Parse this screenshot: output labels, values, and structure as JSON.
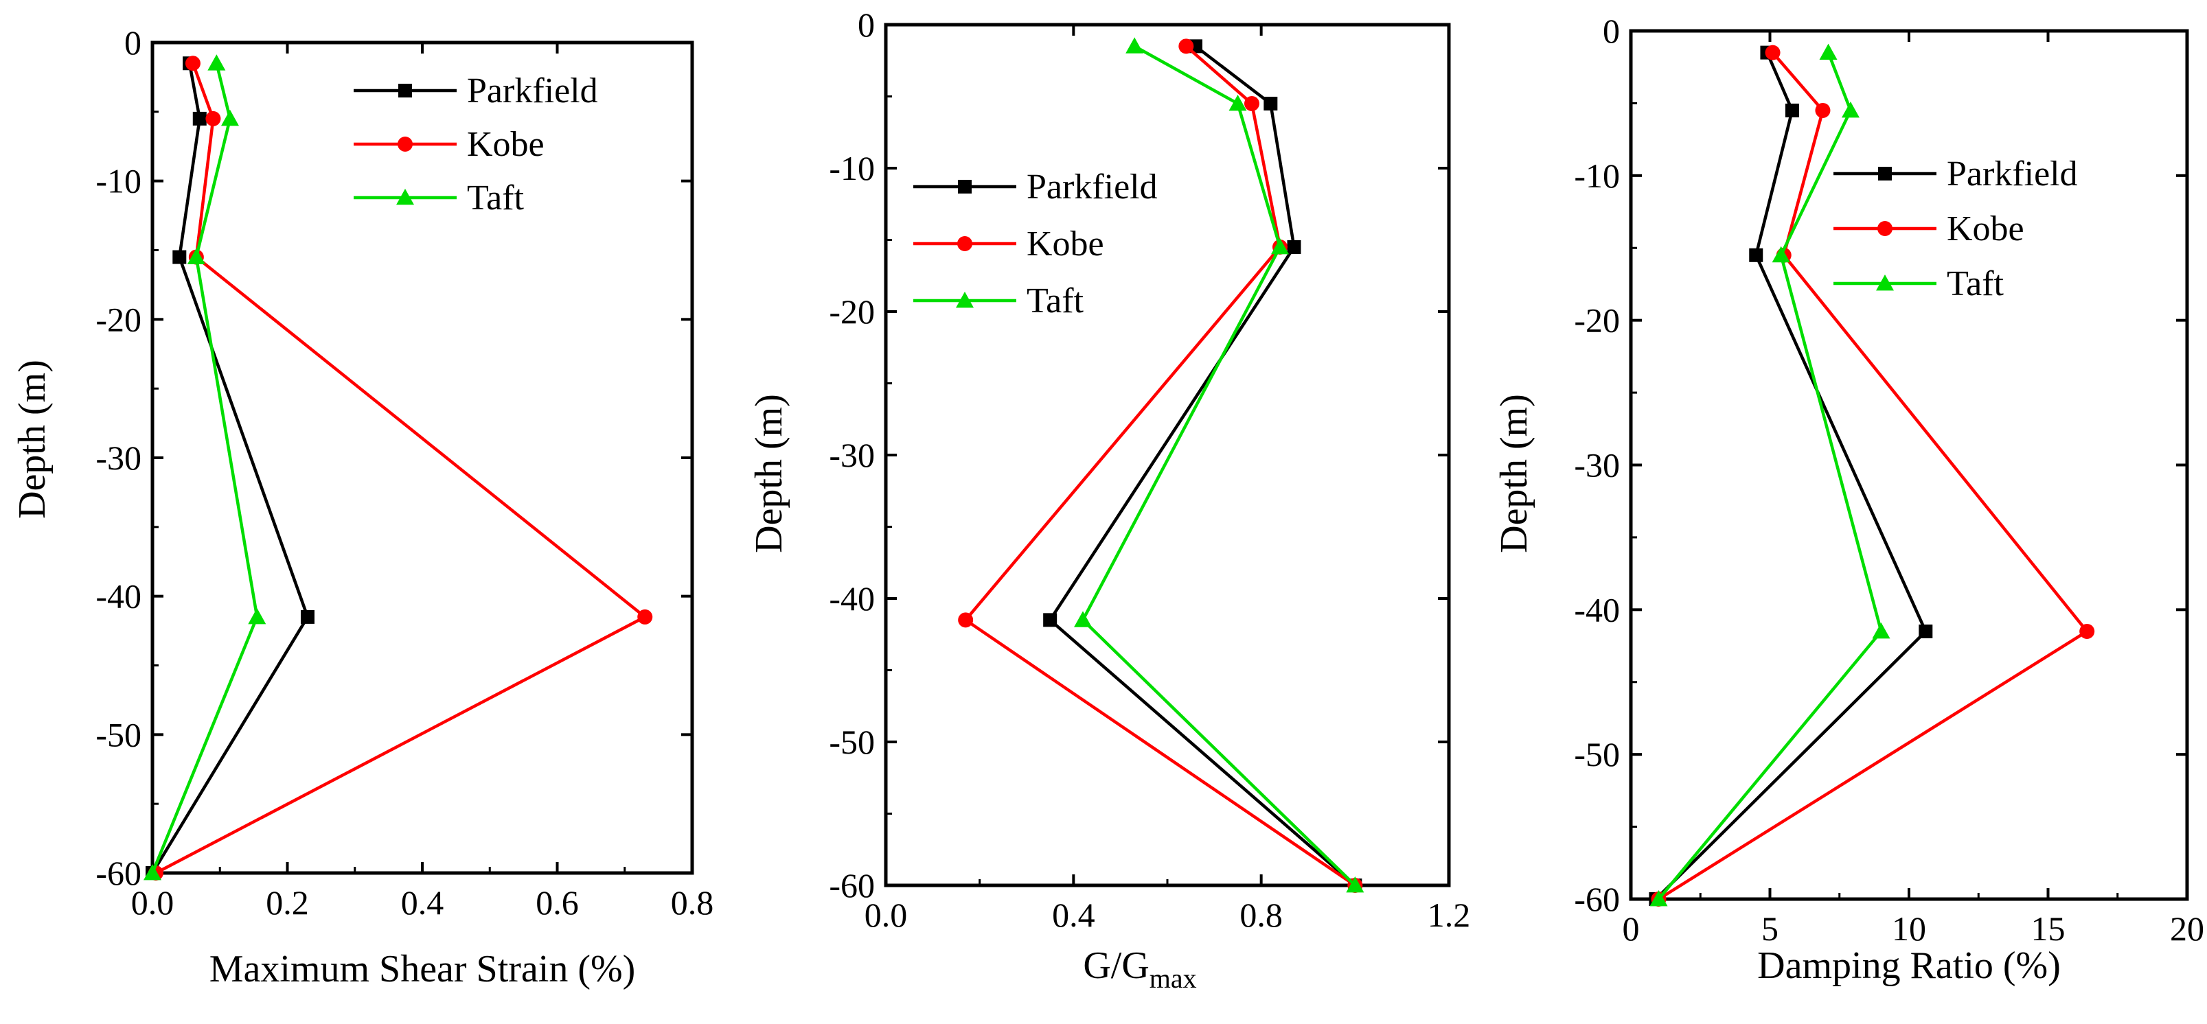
{
  "chart_data": [
    {
      "type": "line",
      "title": "",
      "xlabel": "Maximum Shear Strain (%)",
      "ylabel": "Depth (m)",
      "xlim": [
        0,
        0.8
      ],
      "ylim": [
        -60,
        0
      ],
      "xticks": [
        0.0,
        0.2,
        0.4,
        0.6,
        0.8
      ],
      "xtick_labels": [
        "0.0",
        "0.2",
        "0.4",
        "0.6",
        "0.8"
      ],
      "yticks": [
        0,
        -10,
        -20,
        -30,
        -40,
        -50,
        -60
      ],
      "ytick_labels": [
        "0",
        "-10",
        "-20",
        "-30",
        "-40",
        "-50",
        "-60"
      ],
      "grid": false,
      "legend": "top-right",
      "series": [
        {
          "name": "Parkfield",
          "color": "#000000",
          "marker": "square",
          "points": [
            [
              0.055,
              -1.5
            ],
            [
              0.07,
              -5.5
            ],
            [
              0.04,
              -15.5
            ],
            [
              0.23,
              -41.5
            ],
            [
              0.0,
              -60
            ]
          ]
        },
        {
          "name": "Kobe",
          "color": "#ff0000",
          "marker": "circle",
          "points": [
            [
              0.06,
              -1.5
            ],
            [
              0.09,
              -5.5
            ],
            [
              0.065,
              -15.5
            ],
            [
              0.73,
              -41.5
            ],
            [
              0.005,
              -60
            ]
          ]
        },
        {
          "name": "Taft",
          "color": "#00dd00",
          "marker": "triangle",
          "points": [
            [
              0.095,
              -1.5
            ],
            [
              0.115,
              -5.5
            ],
            [
              0.065,
              -15.5
            ],
            [
              0.155,
              -41.5
            ],
            [
              0.0,
              -60
            ]
          ]
        }
      ]
    },
    {
      "type": "line",
      "title": "",
      "xlabel": "G/G",
      "xlabel_sub": "max",
      "ylabel": "Depth (m)",
      "xlim": [
        0,
        1.2
      ],
      "ylim": [
        -60,
        0
      ],
      "xticks": [
        0.0,
        0.4,
        0.8,
        1.2
      ],
      "xtick_labels": [
        "0.0",
        "0.4",
        "0.8",
        "1.2"
      ],
      "yticks": [
        0,
        -10,
        -20,
        -30,
        -40,
        -50,
        -60
      ],
      "ytick_labels": [
        "0",
        "-10",
        "-20",
        "-30",
        "-40",
        "-50",
        "-60"
      ],
      "grid": false,
      "legend": "top-left",
      "series": [
        {
          "name": "Parkfield",
          "color": "#000000",
          "marker": "square",
          "points": [
            [
              0.66,
              -1.5
            ],
            [
              0.82,
              -5.5
            ],
            [
              0.87,
              -15.5
            ],
            [
              0.35,
              -41.5
            ],
            [
              1.0,
              -60
            ]
          ]
        },
        {
          "name": "Kobe",
          "color": "#ff0000",
          "marker": "circle",
          "points": [
            [
              0.64,
              -1.5
            ],
            [
              0.78,
              -5.5
            ],
            [
              0.84,
              -15.5
            ],
            [
              0.17,
              -41.5
            ],
            [
              1.0,
              -60
            ]
          ]
        },
        {
          "name": "Taft",
          "color": "#00dd00",
          "marker": "triangle",
          "points": [
            [
              0.53,
              -1.5
            ],
            [
              0.75,
              -5.5
            ],
            [
              0.84,
              -15.5
            ],
            [
              0.42,
              -41.5
            ],
            [
              1.0,
              -60
            ]
          ]
        }
      ]
    },
    {
      "type": "line",
      "title": "",
      "xlabel": "Damping Ratio (%)",
      "ylabel": "Depth (m)",
      "xlim": [
        0,
        20
      ],
      "ylim": [
        -60,
        0
      ],
      "xticks": [
        0,
        5,
        10,
        15,
        20
      ],
      "xtick_labels": [
        "0",
        "5",
        "10",
        "15",
        "20"
      ],
      "yticks": [
        0,
        -10,
        -20,
        -30,
        -40,
        -50,
        -60
      ],
      "ytick_labels": [
        "0",
        "-10",
        "-20",
        "-30",
        "-40",
        "-50",
        "-60"
      ],
      "grid": false,
      "legend": "top-right",
      "series": [
        {
          "name": "Parkfield",
          "color": "#000000",
          "marker": "square",
          "points": [
            [
              4.9,
              -1.5
            ],
            [
              5.8,
              -5.5
            ],
            [
              4.5,
              -15.5
            ],
            [
              10.6,
              -41.5
            ],
            [
              0.9,
              -60
            ]
          ]
        },
        {
          "name": "Kobe",
          "color": "#ff0000",
          "marker": "circle",
          "points": [
            [
              5.1,
              -1.5
            ],
            [
              6.9,
              -5.5
            ],
            [
              5.5,
              -15.5
            ],
            [
              16.4,
              -41.5
            ],
            [
              1.0,
              -60
            ]
          ]
        },
        {
          "name": "Taft",
          "color": "#00dd00",
          "marker": "triangle",
          "points": [
            [
              7.1,
              -1.5
            ],
            [
              7.9,
              -5.5
            ],
            [
              5.4,
              -15.5
            ],
            [
              9.0,
              -41.5
            ],
            [
              1.0,
              -60
            ]
          ]
        }
      ]
    }
  ]
}
